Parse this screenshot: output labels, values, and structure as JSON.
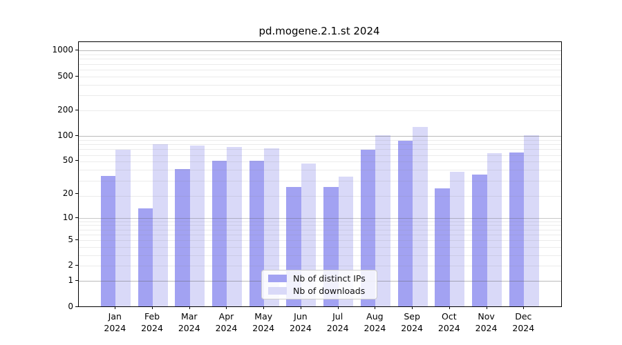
{
  "chart_data": {
    "type": "bar",
    "title": "pd.mogene.2.1.st 2024",
    "x_year": "2024",
    "categories": [
      "Jan",
      "Feb",
      "Mar",
      "Apr",
      "May",
      "Jun",
      "Jul",
      "Aug",
      "Sep",
      "Oct",
      "Nov",
      "Dec"
    ],
    "series": [
      {
        "name": "Nb of distinct IPs",
        "color": "#a2a2f2",
        "values": [
          33,
          13,
          40,
          50,
          50,
          24,
          24,
          67,
          86,
          23,
          34,
          62
        ]
      },
      {
        "name": "Nb of downloads",
        "color": "#d9d9f8",
        "values": [
          67,
          78,
          76,
          73,
          70,
          46,
          32,
          100,
          125,
          37,
          61,
          100
        ]
      }
    ],
    "y_axis": {
      "scale": "log10(value+1)",
      "tick_labels": [
        "0",
        "1",
        "2",
        "5",
        "10",
        "20",
        "50",
        "100",
        "200",
        "500",
        "1000"
      ],
      "tick_values": [
        0,
        1,
        2,
        5,
        10,
        20,
        50,
        100,
        200,
        500,
        1000
      ],
      "major_grid_values": [
        1,
        10,
        100,
        1000
      ],
      "ylim": [
        0,
        1250
      ]
    },
    "grid": "on",
    "legend_position": "lower center",
    "colors": {
      "bar_dark": "#a2a2f2",
      "bar_light": "#d9d9f8",
      "spine": "#000000",
      "legend_border": "#cccccc"
    }
  }
}
